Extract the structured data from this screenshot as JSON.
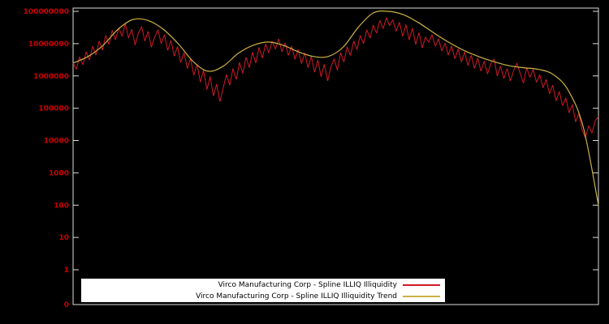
{
  "colors": {
    "background": "#000000",
    "frame": "#dcdcdc",
    "axis_label": "#cc0000",
    "series_red": "#d01a28",
    "series_yellow": "#ccb144",
    "legend_background": "#ffffff",
    "legend_text": "#000000"
  },
  "chart_data": {
    "type": "line",
    "title": "",
    "xlabel": "",
    "ylabel": "",
    "yscale": "log",
    "ylim": [
      1,
      100000000
    ],
    "grid": false,
    "legend_position": "bottom-center",
    "yticks": [
      {
        "label": "100000000",
        "value": 100000000
      },
      {
        "label": "10000000",
        "value": 10000000
      },
      {
        "label": "1000000",
        "value": 1000000
      },
      {
        "label": "100000",
        "value": 100000
      },
      {
        "label": "10000",
        "value": 10000
      },
      {
        "label": "1000",
        "value": 1000
      },
      {
        "label": "100",
        "value": 100
      },
      {
        "label": "10",
        "value": 10
      },
      {
        "label": "1",
        "value": 1
      },
      {
        "label": "0",
        "value": 0
      }
    ],
    "series": [
      {
        "name": "Virco Manufacturing Corp - Spline ILLIQ Illiquidity",
        "color": "#d01a28",
        "smooth": false,
        "values": [
          2500000,
          1600000,
          3900000,
          2200000,
          5600000,
          3100000,
          8300000,
          4400000,
          12000000,
          6300000,
          18000000,
          9500000,
          26000000,
          13000000,
          31000000,
          17000000,
          42000000,
          15000000,
          28000000,
          9000000,
          21000000,
          34000000,
          12000000,
          24000000,
          7800000,
          16000000,
          27000000,
          10000000,
          19000000,
          6200000,
          12500000,
          4100000,
          8200000,
          2600000,
          5300000,
          1700000,
          3400000,
          1050000,
          2300000,
          640000,
          1500000,
          380000,
          950000,
          240000,
          560000,
          160000,
          430000,
          1100000,
          520000,
          1700000,
          780000,
          2600000,
          1200000,
          3800000,
          1800000,
          5400000,
          2500000,
          7600000,
          3600000,
          9800000,
          5100000,
          12000000,
          6800000,
          14000000,
          5600000,
          10500000,
          4300000,
          8400000,
          3300000,
          6600000,
          2400000,
          5200000,
          1800000,
          4000000,
          1300000,
          3100000,
          950000,
          2300000,
          700000,
          1900000,
          3400000,
          1500000,
          5200000,
          2700000,
          8100000,
          4300000,
          12000000,
          6500000,
          18000000,
          10000000,
          27000000,
          15000000,
          38000000,
          21000000,
          52000000,
          29000000,
          63000000,
          36000000,
          55000000,
          24000000,
          46000000,
          17000000,
          39000000,
          13000000,
          30000000,
          9500000,
          22000000,
          7400000,
          16000000,
          11000000,
          19000000,
          8300000,
          14000000,
          5900000,
          10400000,
          4400000,
          8600000,
          3400000,
          6900000,
          2700000,
          5500000,
          2100000,
          4400000,
          1700000,
          3600000,
          1400000,
          2900000,
          1150000,
          2400000,
          3400000,
          1000000,
          2000000,
          830000,
          1700000,
          700000,
          1450000,
          2500000,
          1200000,
          600000,
          1800000,
          900000,
          1600000,
          640000,
          1100000,
          430000,
          780000,
          280000,
          520000,
          170000,
          330000,
          120000,
          210000,
          72000,
          130000,
          38000,
          69000,
          21000,
          12000,
          29000,
          17000,
          41000,
          56000
        ]
      },
      {
        "name": "Virco Manufacturing Corp - Spline ILLIQ Illiquidity Trend",
        "color": "#ccb144",
        "smooth": true,
        "values": [
          2500000,
          4000000,
          8900000,
          28000000,
          56000000,
          52000000,
          28000000,
          10000000,
          2800000,
          1400000,
          2000000,
          5000000,
          8900000,
          11200000,
          8900000,
          5600000,
          4000000,
          4000000,
          7900000,
          32000000,
          89000000,
          100000000,
          79000000,
          45000000,
          22000000,
          11200000,
          6300000,
          4000000,
          2800000,
          2100000,
          1800000,
          1600000,
          1100000,
          350000,
          25000,
          100
        ]
      }
    ]
  }
}
